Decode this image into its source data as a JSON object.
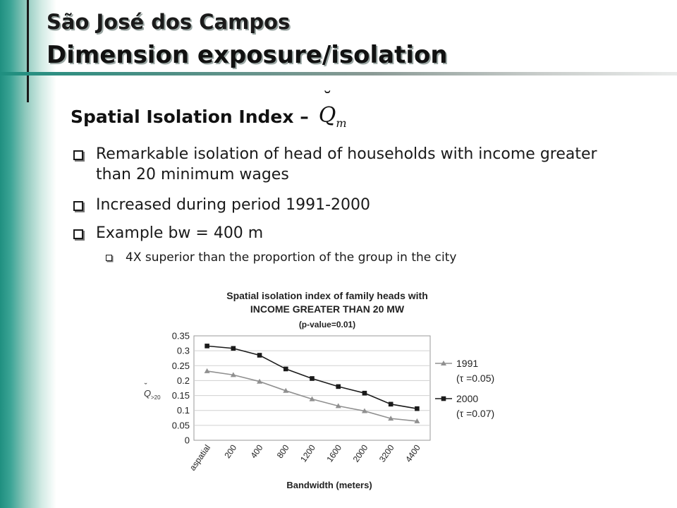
{
  "slide": {
    "title_line1": "São José dos Campos",
    "title_line2": "Dimension exposure/isolation",
    "heading": "Spatial Isolation Index –",
    "bullets": [
      "Remarkable isolation of head of households with income greater than 20 minimum wages",
      "Increased during period 1991-2000",
      "Example bw = 400 m"
    ],
    "sub_bullet": "4X superior than the proportion of the group in the city"
  },
  "colors": {
    "accent": "#1f8f80",
    "series_1991": "#909090",
    "series_2000": "#1a1a1a"
  },
  "chart_data": {
    "type": "line",
    "title": "Spatial isolation index of family heads with",
    "subtitle": "INCOME GREATER THAN 20 MW",
    "note": "(p-value=0.01)",
    "xlabel": "Bandwidth (meters)",
    "ylabel": "Q>20",
    "categories": [
      "aspatial",
      "200",
      "400",
      "800",
      "1200",
      "1600",
      "2000",
      "3200",
      "4400"
    ],
    "y_ticks": [
      "0.35",
      "0.3",
      "0.25",
      "0.2",
      "0.15",
      "0.1",
      "0.05",
      "0"
    ],
    "ylim": [
      0,
      0.35
    ],
    "grid": true,
    "legend_position": "right",
    "series": [
      {
        "name": "1991",
        "tau": "(τ =0.05)",
        "marker": "triangle",
        "color": "#909090",
        "values": [
          0.232,
          0.219,
          0.197,
          0.166,
          0.138,
          0.115,
          0.098,
          0.073,
          0.064
        ]
      },
      {
        "name": "2000",
        "tau": "(τ =0.07)",
        "marker": "square",
        "color": "#1a1a1a",
        "values": [
          0.316,
          0.308,
          0.285,
          0.239,
          0.207,
          0.18,
          0.158,
          0.121,
          0.106
        ]
      }
    ]
  }
}
